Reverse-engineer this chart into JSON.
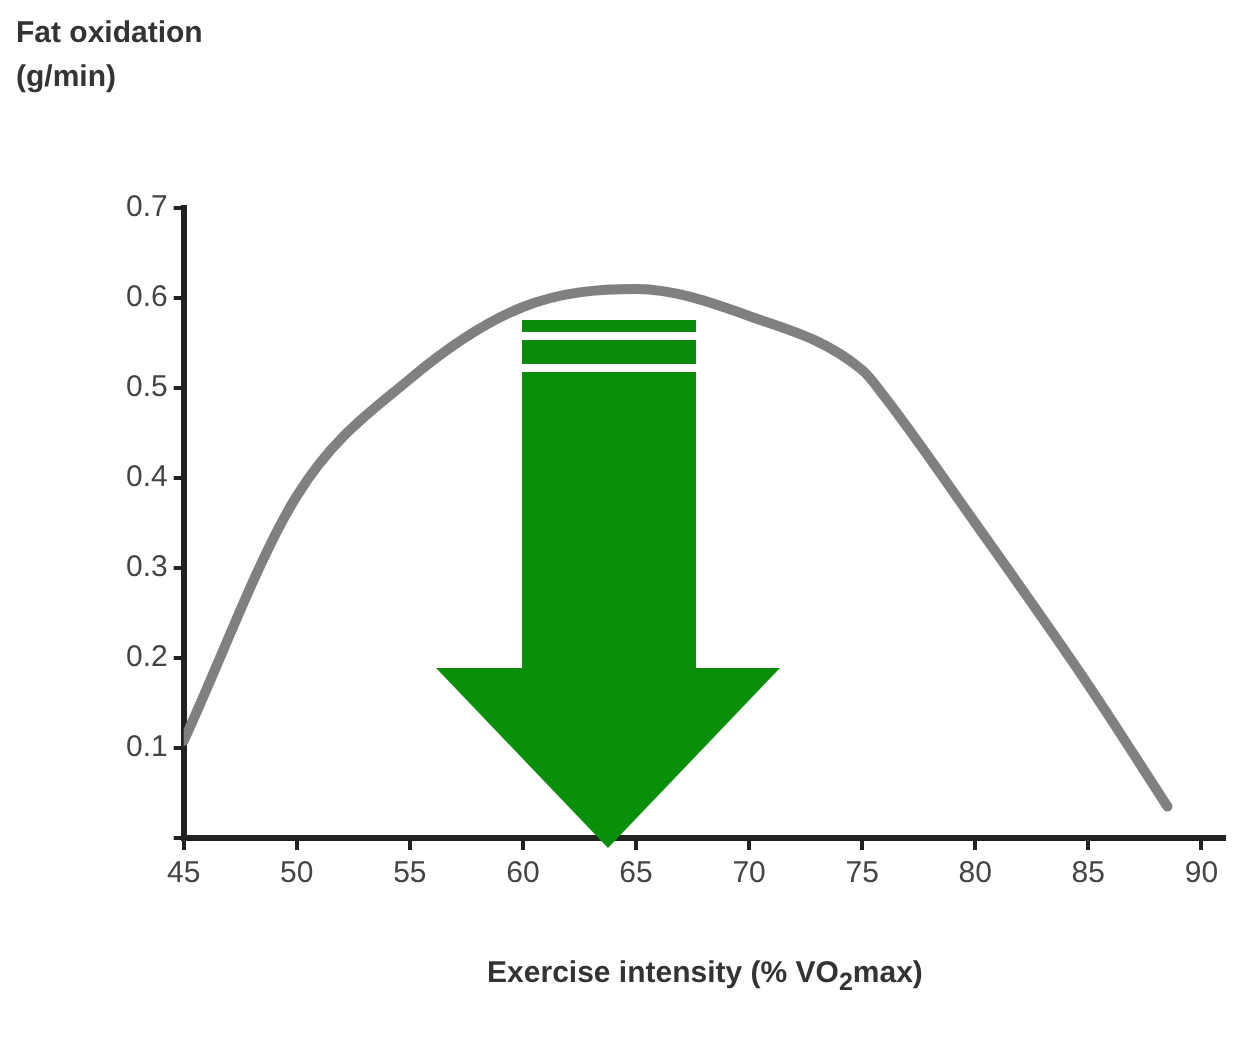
{
  "chart_data": {
    "type": "line",
    "ylabel": "Fat oxidation\n(g/min)",
    "xlabel": "Exercise intensity (% VO$_{2}$max)",
    "x": [
      45,
      50,
      55,
      60,
      65,
      70,
      75,
      76,
      80,
      85,
      88.5
    ],
    "series": [
      {
        "color": "#808080",
        "values": [
          0.108,
          0.38,
          0.51,
          0.59,
          0.61,
          0.58,
          0.52,
          0.49,
          0.35,
          0.17,
          0.035
        ]
      }
    ],
    "xlim": [
      45,
      91
    ],
    "xticks": [
      45,
      50,
      55,
      60,
      65,
      70,
      75,
      80,
      85,
      90
    ],
    "ylim": [
      0,
      0.7
    ],
    "yticks": [
      {
        "value": 0,
        "label": null
      },
      0.1,
      0.2,
      0.3,
      0.4,
      0.5,
      0.6,
      0.7
    ],
    "grid": false,
    "legend": false,
    "marker": "none",
    "line_style": "solid"
  }
}
